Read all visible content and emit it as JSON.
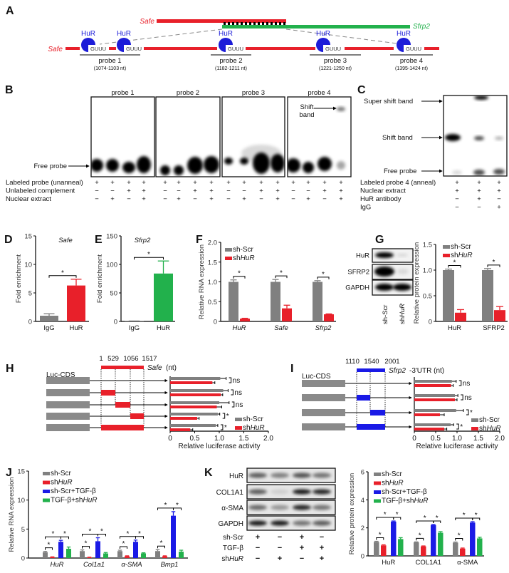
{
  "panel_labels": [
    "A",
    "B",
    "C",
    "D",
    "E",
    "F",
    "G",
    "H",
    "I",
    "J",
    "K"
  ],
  "colors": {
    "gray": "#808080",
    "red": "#e8202a",
    "blue": "#1a1ae6",
    "green": "#22b14c",
    "hur": "#1c1cd8"
  },
  "panel_a": {
    "safe_label": "Safe",
    "sfrp2_label": "Sfrp2",
    "protein_label": "HuR",
    "motif": "GUUU",
    "probes": [
      {
        "name": "probe 1",
        "range": "(1074-1103 nt)"
      },
      {
        "name": "probe 2",
        "range": "(1182-1211 nt)"
      },
      {
        "name": "probe 3",
        "range": "(1221-1250 nt)"
      },
      {
        "name": "probe 4",
        "range": "(1395-1424 nt)"
      }
    ]
  },
  "panel_b": {
    "gel_titles": [
      "probe 1",
      "probe 2",
      "probe 3",
      "probe 4"
    ],
    "free_probe_label": "Free probe",
    "shift_band_label": [
      "Shift",
      "band"
    ],
    "rows": [
      {
        "label": "Labeled probe (unanneal)",
        "signs": [
          "+",
          "+",
          "+",
          "+",
          "+",
          "+",
          "+",
          "+",
          "+",
          "+",
          "+",
          "+",
          "+",
          "+",
          "+",
          "+"
        ]
      },
      {
        "label": "Unlabeled complement",
        "signs": [
          "−",
          "−",
          "+",
          "+",
          "−",
          "−",
          "+",
          "+",
          "−",
          "−",
          "+",
          "+",
          "−",
          "−",
          "+",
          "+"
        ]
      },
      {
        "label": "Nuclear extract",
        "signs": [
          "−",
          "+",
          "−",
          "+",
          "−",
          "+",
          "−",
          "+",
          "−",
          "+",
          "−",
          "+",
          "−",
          "+",
          "−",
          "+"
        ]
      }
    ]
  },
  "panel_c": {
    "super_shift_label": "Super shift band",
    "shift_label": "Shift band",
    "free_probe_label": "Free probe",
    "rows": [
      {
        "label": "Labeled probe 4 (anneal)",
        "signs": [
          "+",
          "+",
          "+"
        ]
      },
      {
        "label": "Nuclear extract",
        "signs": [
          "+",
          "+",
          "+"
        ]
      },
      {
        "label": "HuR antibody",
        "signs": [
          "−",
          "+",
          "−"
        ]
      },
      {
        "label": "IgG",
        "signs": [
          "−",
          "−",
          "+"
        ]
      }
    ]
  },
  "panel_g_blot": {
    "rows": [
      "HuR",
      "SFRP2",
      "GAPDH"
    ],
    "lanes": [
      "sh-Scr",
      "shHuR"
    ]
  },
  "panel_k_blot": {
    "rows": [
      "HuR",
      "COL1A1",
      "α-SMA",
      "GAPDH"
    ],
    "treatments": [
      {
        "label": "sh-Scr",
        "signs": [
          "+",
          "−",
          "+",
          "−"
        ]
      },
      {
        "label": "TGF-β",
        "signs": [
          "−",
          "−",
          "+",
          "+"
        ]
      },
      {
        "label": "shHuR",
        "signs": [
          "−",
          "+",
          "−",
          "+"
        ]
      }
    ]
  },
  "panel_h_constructs": {
    "positions": [
      "1",
      "529",
      "1056",
      "1517"
    ],
    "gene_label": "Safe",
    "unit": "(nt)",
    "luc_label": "Luc-CDS",
    "fragments": [
      null,
      [
        0,
        1
      ],
      [
        1,
        2
      ],
      [
        2,
        3
      ],
      [
        0,
        3
      ]
    ]
  },
  "panel_i_constructs": {
    "positions": [
      "1110",
      "1540",
      "2001"
    ],
    "gene_label": "Sfrp2",
    "unit": "-3'UTR (nt)",
    "luc_label": "Luc-CDS",
    "fragments": [
      null,
      [
        0,
        1
      ],
      [
        1,
        2
      ],
      [
        0,
        2
      ]
    ]
  },
  "chart_data": [
    {
      "id": "D",
      "type": "bar",
      "title": "Safe",
      "xlabel": "",
      "ylabel": "Fold enrichment",
      "ylim": [
        0,
        15
      ],
      "yticks": [
        0,
        5,
        10,
        15
      ],
      "ytick_labels": [
        "0",
        "5",
        "10",
        "15"
      ],
      "categories": [
        "IgG",
        "HuR"
      ],
      "italic_categories": false,
      "series": [
        {
          "values": [
            1.0,
            6.3
          ],
          "errors": [
            0.35,
            1.1
          ]
        }
      ],
      "bar_colors": [
        "#808080",
        "#e8202a"
      ],
      "significance": {
        "between_categories": [
          0,
          1
        ],
        "label": "*"
      }
    },
    {
      "id": "E",
      "type": "bar",
      "title": "Sfrp2",
      "xlabel": "",
      "ylabel": "Fold enrichment",
      "ylim": [
        0,
        150
      ],
      "yticks": [
        0,
        50,
        100,
        150
      ],
      "ytick_labels": [
        "0",
        "50",
        "100",
        "150"
      ],
      "categories": [
        "IgG",
        "HuR"
      ],
      "italic_categories": false,
      "series": [
        {
          "values": [
            0.5,
            84
          ],
          "errors": [
            0.3,
            22
          ]
        }
      ],
      "bar_colors": [
        "#808080",
        "#22b14c"
      ],
      "significance": {
        "between_categories": [
          0,
          1
        ],
        "label": "*"
      }
    },
    {
      "id": "F",
      "type": "bar",
      "title": "",
      "xlabel": "",
      "ylabel": "Relative RNA expression",
      "ylim": [
        0,
        2
      ],
      "yticks": [
        0,
        0.5,
        1,
        1.5,
        2
      ],
      "ytick_labels": [
        "0",
        "0.5",
        "1.0",
        "1.5",
        "2.0"
      ],
      "categories": [
        "HuR",
        "Safe",
        "Sfrp2"
      ],
      "italic_categories": true,
      "series": [
        {
          "name": "sh-Scr",
          "color": "#808080",
          "values": [
            1.0,
            1.0,
            1.0
          ],
          "errors": [
            0.05,
            0.06,
            0.03
          ]
        },
        {
          "name": "shHuR",
          "color": "#e8202a",
          "values": [
            0.07,
            0.33,
            0.18
          ],
          "errors": [
            0.01,
            0.08,
            0.01
          ]
        }
      ],
      "significance": {
        "pairs_within_each_group": [
          [
            0,
            1
          ]
        ],
        "label": "*"
      }
    },
    {
      "id": "G",
      "type": "bar",
      "title": "",
      "xlabel": "",
      "ylabel": "Relative protein expression",
      "ylim": [
        0,
        1.5
      ],
      "yticks": [
        0,
        0.5,
        1,
        1.5
      ],
      "ytick_labels": [
        "0",
        "0.5",
        "1.0",
        "1.5"
      ],
      "categories": [
        "HuR",
        "SFRP2"
      ],
      "italic_categories": false,
      "series": [
        {
          "name": "sh-Scr",
          "color": "#808080",
          "values": [
            1.0,
            1.0
          ],
          "errors": [
            0.02,
            0.03
          ]
        },
        {
          "name": "shHuR",
          "color": "#e8202a",
          "values": [
            0.17,
            0.22
          ],
          "errors": [
            0.06,
            0.07
          ]
        }
      ],
      "significance": {
        "pairs_within_each_group": [
          [
            0,
            1
          ]
        ],
        "label": "*"
      }
    },
    {
      "id": "H",
      "type": "hbar",
      "xlabel": "Relative luciferase activity",
      "xlim": [
        0,
        2
      ],
      "xticks": [
        0,
        0.5,
        1,
        1.5,
        2
      ],
      "xtick_labels": [
        "0",
        "0.5",
        "1.0",
        "1.5",
        "2.0"
      ],
      "series": [
        {
          "name": "sh-Scr",
          "color": "#808080",
          "values": [
            1.02,
            1.08,
            1.0,
            0.97,
            0.93
          ],
          "errors": [
            0.12,
            0.1,
            0.2,
            0.04,
            0.04
          ]
        },
        {
          "name": "shHuR",
          "color": "#e8202a",
          "values": [
            0.86,
            1.03,
            0.95,
            0.55,
            0.41
          ],
          "errors": [
            0.05,
            0.04,
            0.1,
            0.04,
            0.05
          ]
        }
      ],
      "significance": [
        "ns",
        "ns",
        "ns",
        "*",
        "*"
      ]
    },
    {
      "id": "I",
      "type": "hbar",
      "xlabel": "Relative luciferase activity",
      "xlim": [
        0,
        2
      ],
      "xticks": [
        0,
        0.5,
        1,
        1.5,
        2
      ],
      "xtick_labels": [
        "0",
        "0.5",
        "1.0",
        "1.5",
        "2.0"
      ],
      "series": [
        {
          "name": "sh-Scr",
          "color": "#808080",
          "values": [
            0.88,
            0.95,
            0.98,
            0.85
          ],
          "errors": [
            0.1,
            0.07,
            0.17,
            0.07
          ]
        },
        {
          "name": "shHuR",
          "color": "#e8202a",
          "values": [
            0.86,
            0.95,
            0.6,
            0.7
          ],
          "errors": [
            0.05,
            0.05,
            0.1,
            0.06
          ]
        }
      ],
      "significance": [
        "ns",
        "ns",
        "*",
        "*"
      ]
    },
    {
      "id": "J",
      "type": "bar",
      "title": "",
      "xlabel": "",
      "ylabel": "Relative RNA expression",
      "ylim": [
        0,
        15
      ],
      "yticks": [
        0,
        5,
        10,
        15
      ],
      "ytick_labels": [
        "0",
        "5",
        "10",
        "15"
      ],
      "categories": [
        "HuR",
        "Col1a1",
        "α-SMA",
        "Bmp1"
      ],
      "italic_categories": true,
      "series": [
        {
          "name": "sh-Scr",
          "color": "#808080",
          "values": [
            1.0,
            1.2,
            1.2,
            1.2
          ],
          "errors": [
            0.15,
            0.2,
            0.15,
            0.25
          ]
        },
        {
          "name": "shHuR",
          "color": "#e8202a",
          "values": [
            0.15,
            0.1,
            0.3,
            0.3
          ],
          "errors": [
            0.05,
            0.05,
            0.08,
            0.08
          ]
        },
        {
          "name": "sh-Scr+TGF-β",
          "color": "#1a1ae6",
          "values": [
            2.8,
            2.9,
            2.8,
            7.3
          ],
          "errors": [
            0.25,
            0.6,
            0.3,
            0.7
          ]
        },
        {
          "name": "TGF-β+shHuR",
          "color": "#22b14c",
          "values": [
            1.6,
            0.8,
            0.8,
            1.1
          ],
          "errors": [
            0.3,
            0.15,
            0.1,
            0.25
          ]
        }
      ],
      "significance": {
        "pairs_within_each_group": [
          [
            0,
            1
          ],
          [
            0,
            2
          ],
          [
            2,
            3
          ]
        ],
        "label": "*"
      }
    },
    {
      "id": "K",
      "type": "bar",
      "title": "",
      "xlabel": "",
      "ylabel": "Relative protein expression",
      "ylim": [
        0,
        6
      ],
      "yticks": [
        0,
        2,
        4,
        6
      ],
      "ytick_labels": [
        "0",
        "2",
        "4",
        "6"
      ],
      "categories": [
        "HuR",
        "COL1A1",
        "α-SMA"
      ],
      "italic_categories": false,
      "series": [
        {
          "name": "sh-Scr",
          "color": "#808080",
          "values": [
            1.0,
            0.97,
            0.95
          ],
          "errors": [
            0.04,
            0.03,
            0.04
          ]
        },
        {
          "name": "shHuR",
          "color": "#e8202a",
          "values": [
            0.75,
            0.68,
            0.52
          ],
          "errors": [
            0.04,
            0.03,
            0.04
          ]
        },
        {
          "name": "sh-Scr+TGF-β",
          "color": "#1a1ae6",
          "values": [
            2.45,
            2.2,
            2.38
          ],
          "errors": [
            0.04,
            0.04,
            0.06
          ]
        },
        {
          "name": "TGF-β+shHuR",
          "color": "#22b14c",
          "values": [
            1.2,
            1.65,
            1.25
          ],
          "errors": [
            0.1,
            0.08,
            0.08
          ]
        }
      ],
      "significance": {
        "pairs_within_each_group": [
          [
            0,
            1
          ],
          [
            0,
            2
          ],
          [
            2,
            3
          ]
        ],
        "label": "*"
      }
    }
  ]
}
